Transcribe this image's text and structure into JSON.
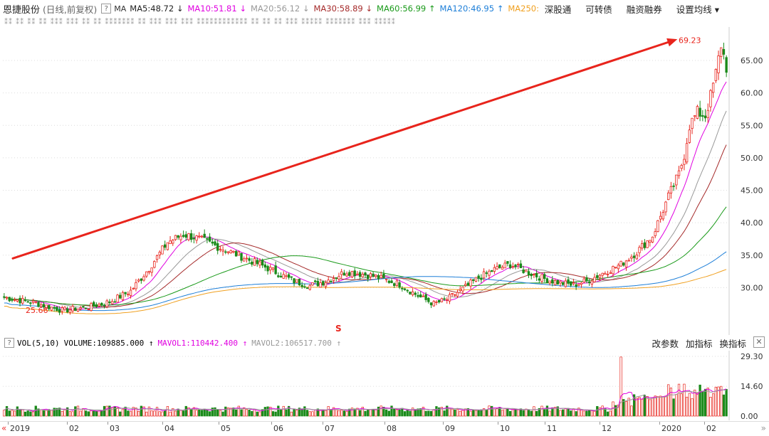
{
  "header": {
    "stock_name": "恩捷股份",
    "period": "(日线,前复权)",
    "help_icon": "?",
    "ma_label": "MA",
    "ma_items": [
      {
        "text": "MA5:48.72",
        "arrow": "↓",
        "color": "#222222"
      },
      {
        "text": "MA10:51.81",
        "arrow": "↓",
        "color": "#e000e0"
      },
      {
        "text": "MA20:56.12",
        "arrow": "↓",
        "color": "#999999"
      },
      {
        "text": "MA30:58.89",
        "arrow": "↓",
        "color": "#a52a2a"
      },
      {
        "text": "MA60:56.99",
        "arrow": "↑",
        "color": "#1a9a1a"
      },
      {
        "text": "MA120:46.95",
        "arrow": "↑",
        "color": "#1e7fd8"
      },
      {
        "text": "MA250:",
        "arrow": "",
        "color": "#f0a020"
      }
    ],
    "menu": [
      "深股通",
      "可转债",
      "融资融券",
      "设置均线 ▾"
    ]
  },
  "signal_row": "⁑⁑ ⁑⁑ ⁑⁑   ⁑⁑  ⁑⁑⁑  ⁑⁑⁑   ⁑⁑ ⁑⁑   ⁑⁑⁑⁑⁑⁑⁑  ⁑⁑ ⁑⁑⁑   ⁑⁑⁑  ⁑⁑⁑  ⁑⁑⁑⁑⁑⁑⁑⁑⁑⁑⁑⁑  ⁑⁑ ⁑⁑ ⁑⁑  ⁑⁑⁑ ⁑⁑⁑⁑⁑ ⁑⁑⁑⁑⁑⁑⁑  ⁑⁑⁑  ⁑⁑⁑⁑⁑",
  "price_axis": {
    "ticks": [
      "65.00",
      "60.00",
      "55.00",
      "50.00",
      "45.00",
      "40.00",
      "35.00",
      "30.00"
    ]
  },
  "annotations": {
    "high_label": "69.23",
    "low_label": "25.66",
    "s_marker": "S"
  },
  "chart_data": {
    "type": "candlestick",
    "ylim": [
      25,
      69.5
    ],
    "max_price": 69.23,
    "min_price": 25.66,
    "ma_series": [
      {
        "name": "MA10",
        "color": "#e000e0"
      },
      {
        "name": "MA20",
        "color": "#999999"
      },
      {
        "name": "MA30",
        "color": "#a52a2a"
      },
      {
        "name": "MA60",
        "color": "#1a9a1a"
      },
      {
        "name": "MA120",
        "color": "#1e7fd8"
      },
      {
        "name": "MA250",
        "color": "#f0a020"
      }
    ],
    "trend_arrow_color": "#e8241c"
  },
  "volume": {
    "help_icon": "?",
    "title": "VOL(5,10)",
    "volume_text": "VOLUME:109885.000",
    "volume_arrow": "↑",
    "mavol1_text": "MAVOL1:110442.400",
    "mavol1_arrow": "↑",
    "mavol2_text": "MAVOL2:106517.700",
    "mavol2_arrow": "↑",
    "menu": [
      "改参数",
      "加指标",
      "换指标"
    ],
    "close_icon": "✕",
    "axis_ticks": [
      "29.30",
      "14.60",
      "0.00"
    ]
  },
  "x_axis": {
    "left_arrow": "«",
    "right_arrow": "»",
    "labels": [
      "2019",
      "02",
      "03",
      "04",
      "05",
      "06",
      "07",
      "08",
      "09",
      "10",
      "11",
      "12",
      "2020",
      "02"
    ]
  },
  "colors": {
    "up": "#e8241c",
    "down": "#1a8a1a",
    "grid": "#dcdcdc"
  }
}
